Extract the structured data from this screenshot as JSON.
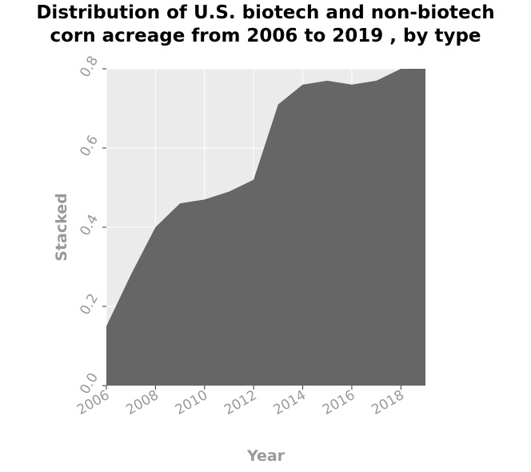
{
  "chart_data": {
    "type": "area",
    "title_lines": [
      "Distribution of U.S. biotech and non-biotech",
      "corn acreage from 2006 to 2019 , by type"
    ],
    "xlabel": "Year",
    "ylabel": "Stacked",
    "xlim": [
      2006,
      2019
    ],
    "ylim": [
      0,
      0.8
    ],
    "x_ticks": [
      2006,
      2008,
      2010,
      2012,
      2014,
      2016,
      2018
    ],
    "y_ticks": [
      "0.0",
      "0.2",
      "0.4",
      "0.6",
      "0.8"
    ],
    "y_tick_values": [
      0,
      0.2,
      0.4,
      0.6,
      0.8
    ],
    "grid": true,
    "colors": {
      "area": "#666666",
      "plot_bg": "#ebebeb",
      "grid": "#ffffff",
      "text": "#999999"
    },
    "series": [
      {
        "x": [
          2006,
          2007,
          2008,
          2009,
          2010,
          2011,
          2012,
          2013,
          2014,
          2015,
          2016,
          2017,
          2018,
          2019
        ],
        "values": [
          0.15,
          0.28,
          0.4,
          0.46,
          0.47,
          0.49,
          0.52,
          0.71,
          0.76,
          0.77,
          0.76,
          0.77,
          0.8,
          0.8
        ]
      }
    ]
  }
}
